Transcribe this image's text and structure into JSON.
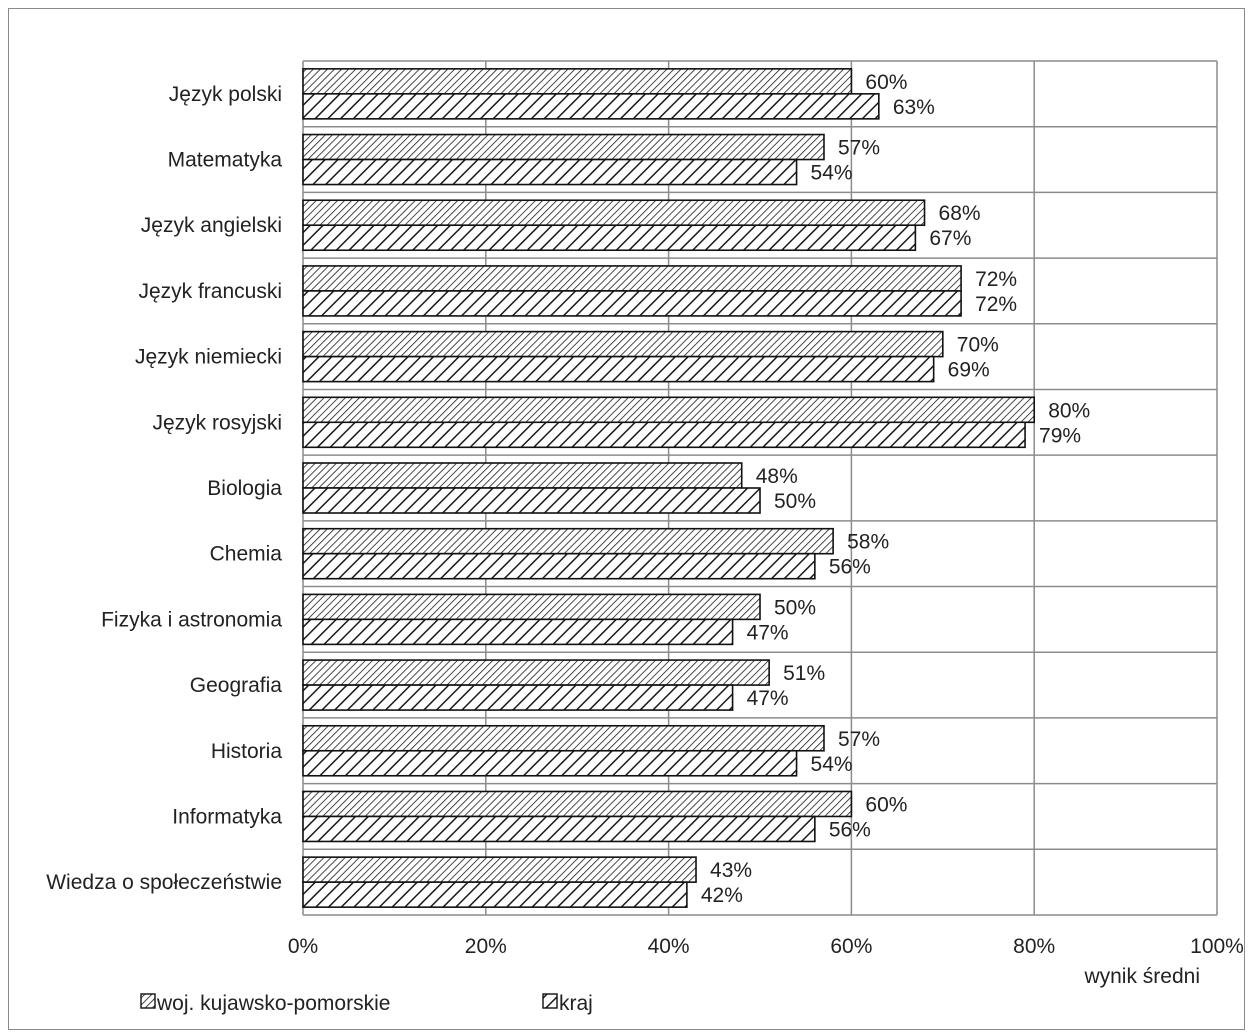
{
  "chart_data": {
    "type": "bar",
    "orientation": "horizontal",
    "categories": [
      "Język polski",
      "Matematyka",
      "Język angielski",
      "Język francuski",
      "Język niemiecki",
      "Język rosyjski",
      "Biologia",
      "Chemia",
      "Fizyka i astronomia",
      "Geografia",
      "Historia",
      "Informatyka",
      "Wiedza o społeczeństwie"
    ],
    "series": [
      {
        "name": "woj. kujawsko-pomorskie",
        "pattern": "fine-diagonal",
        "values": [
          60,
          57,
          68,
          72,
          70,
          80,
          48,
          58,
          50,
          51,
          57,
          60,
          43
        ]
      },
      {
        "name": "kraj",
        "pattern": "coarse-diagonal",
        "values": [
          63,
          54,
          67,
          72,
          69,
          79,
          50,
          56,
          47,
          47,
          54,
          56,
          42
        ]
      }
    ],
    "xlabel": "wynik średni",
    "ylabel": "",
    "xlim": [
      0,
      100
    ],
    "xticks": [
      "0%",
      "20%",
      "40%",
      "60%",
      "80%",
      "100%"
    ],
    "value_suffix": "%",
    "grid": true,
    "legend_position": "bottom-left"
  }
}
